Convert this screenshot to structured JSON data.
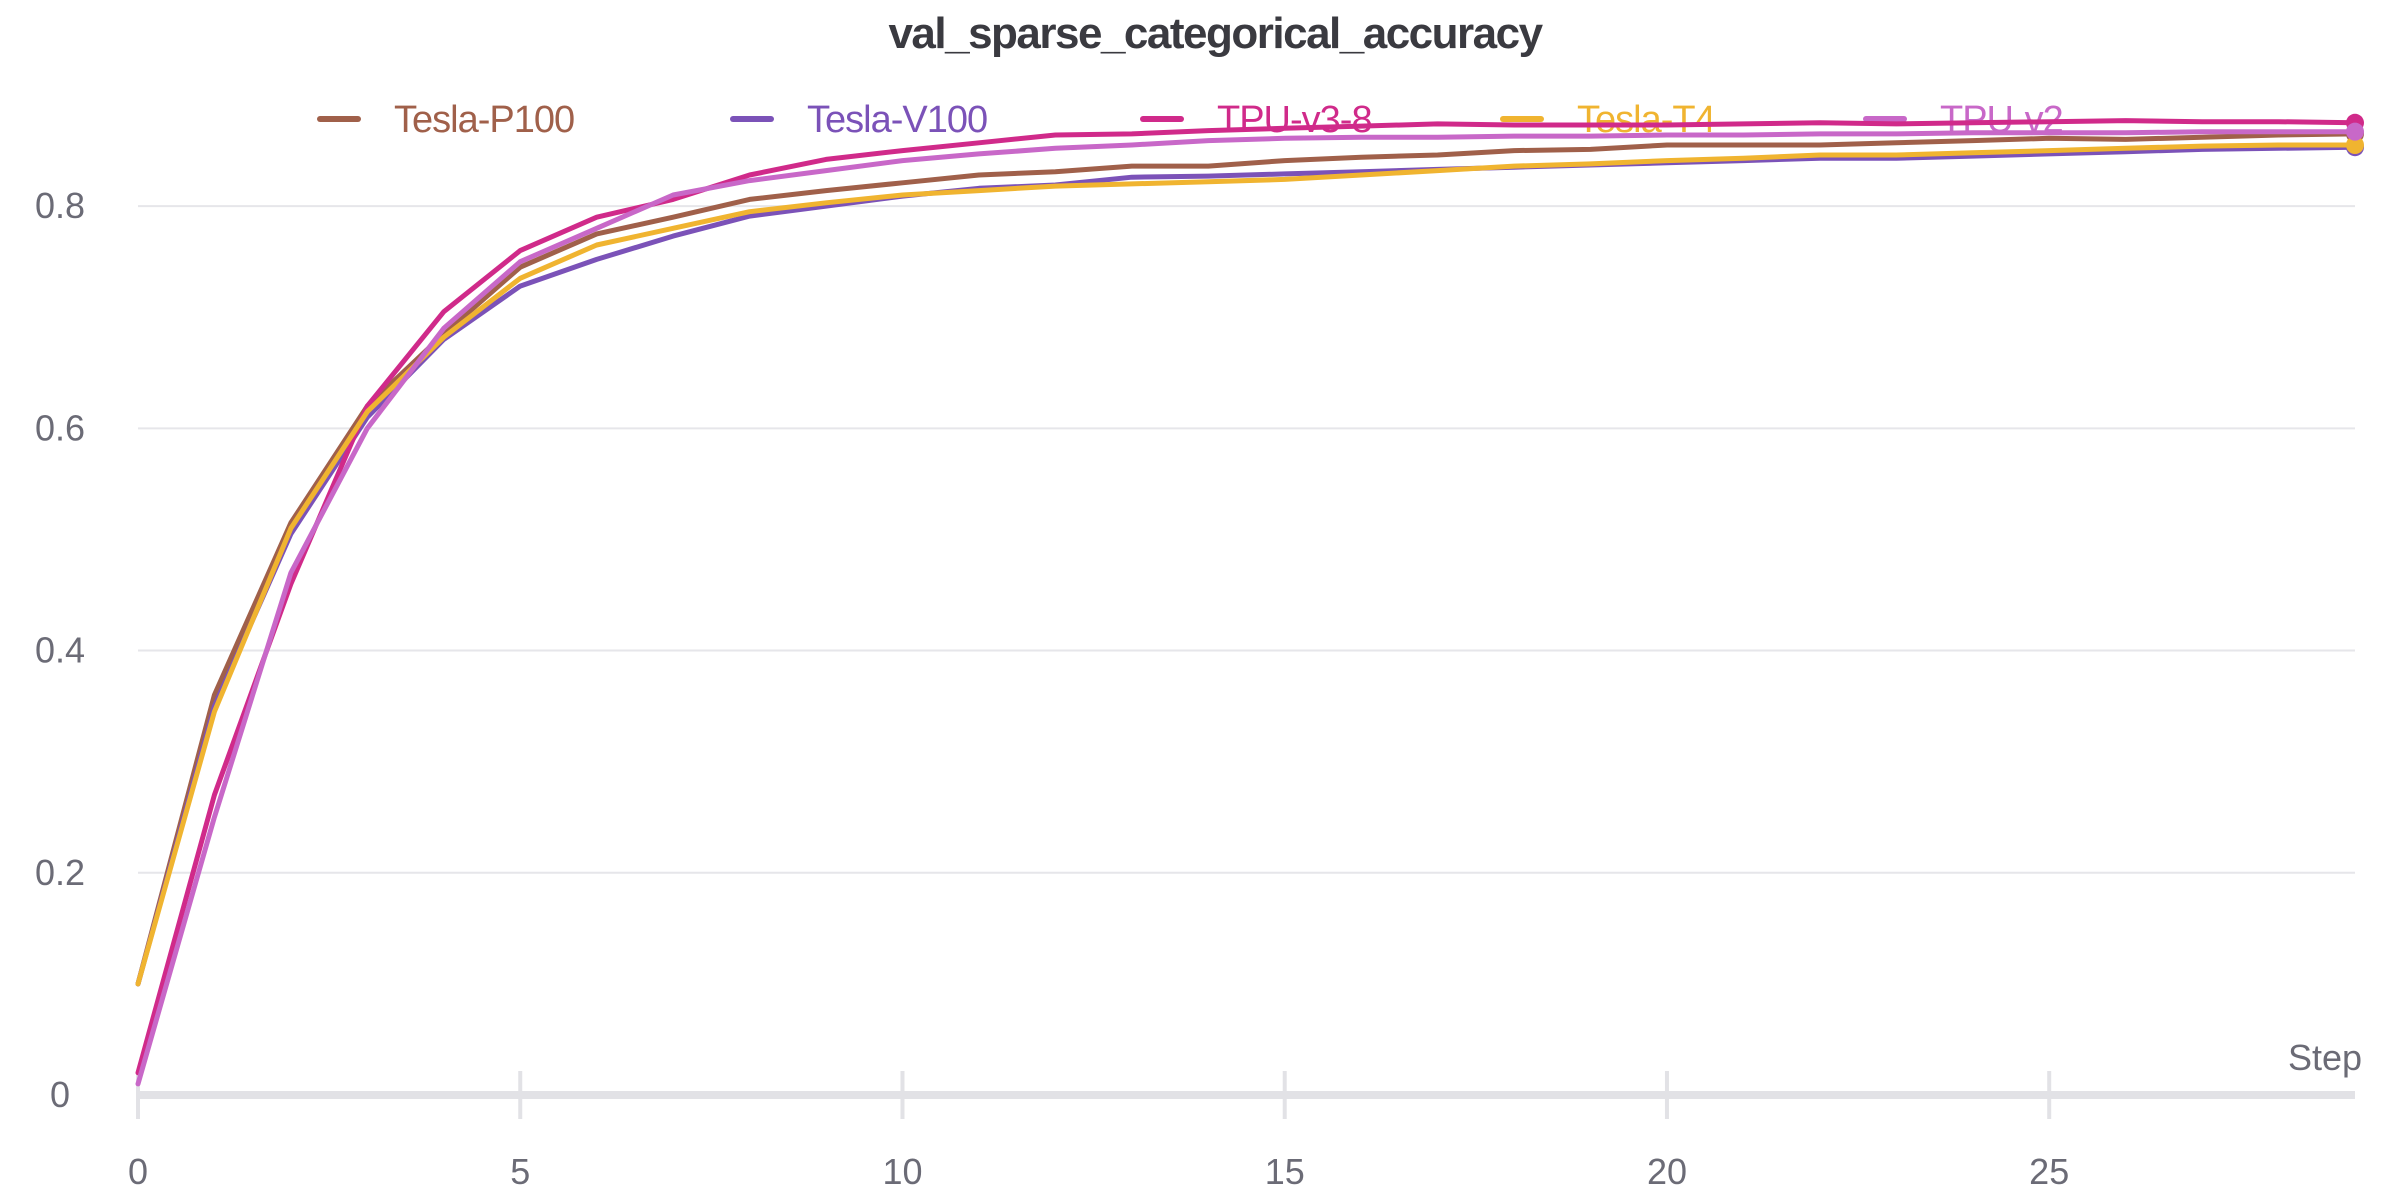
{
  "chart_data": {
    "type": "line",
    "title": "val_sparse_categorical_accuracy",
    "xlabel": "Step",
    "ylabel": "",
    "xlim": [
      0,
      29
    ],
    "ylim": [
      0,
      0.9
    ],
    "xticks": [
      0,
      5,
      10,
      15,
      20,
      25
    ],
    "yticks": [
      0,
      0.2,
      0.4,
      0.6,
      0.8
    ],
    "xtick_labels": [
      "0",
      "5",
      "10",
      "15",
      "20",
      "25"
    ],
    "ytick_labels": [
      "0",
      "0.2",
      "0.4",
      "0.6",
      "0.8"
    ],
    "grid": true,
    "legend_position": "top",
    "x": [
      0,
      1,
      2,
      3,
      4,
      5,
      6,
      7,
      8,
      9,
      10,
      11,
      12,
      13,
      14,
      15,
      16,
      17,
      18,
      19,
      20,
      21,
      22,
      23,
      24,
      25,
      26,
      27,
      28,
      29
    ],
    "series": [
      {
        "name": "Tesla-P100",
        "color": "#a0604a",
        "values": [
          0.1,
          0.36,
          0.515,
          0.62,
          0.685,
          0.745,
          0.775,
          0.79,
          0.806,
          0.814,
          0.821,
          0.828,
          0.831,
          0.836,
          0.836,
          0.841,
          0.844,
          0.846,
          0.85,
          0.851,
          0.855,
          0.855,
          0.855,
          0.857,
          0.859,
          0.861,
          0.86,
          0.862,
          0.864,
          0.865
        ]
      },
      {
        "name": "Tesla-V100",
        "color": "#7b52b8",
        "values": [
          0.1,
          0.35,
          0.505,
          0.61,
          0.68,
          0.728,
          0.752,
          0.773,
          0.791,
          0.8,
          0.809,
          0.816,
          0.819,
          0.826,
          0.827,
          0.829,
          0.831,
          0.833,
          0.835,
          0.837,
          0.839,
          0.841,
          0.843,
          0.843,
          0.845,
          0.847,
          0.849,
          0.851,
          0.852,
          0.853
        ]
      },
      {
        "name": "TPU-v3-8",
        "color": "#d02a8a",
        "values": [
          0.02,
          0.27,
          0.46,
          0.62,
          0.705,
          0.76,
          0.79,
          0.806,
          0.828,
          0.842,
          0.85,
          0.857,
          0.864,
          0.865,
          0.868,
          0.87,
          0.872,
          0.874,
          0.873,
          0.873,
          0.873,
          0.874,
          0.875,
          0.874,
          0.875,
          0.876,
          0.877,
          0.876,
          0.876,
          0.875
        ]
      },
      {
        "name": "Tesla-T4",
        "color": "#f0b430",
        "values": [
          0.1,
          0.345,
          0.51,
          0.615,
          0.682,
          0.735,
          0.765,
          0.78,
          0.795,
          0.803,
          0.81,
          0.814,
          0.818,
          0.82,
          0.822,
          0.824,
          0.828,
          0.832,
          0.836,
          0.838,
          0.841,
          0.843,
          0.846,
          0.846,
          0.848,
          0.85,
          0.852,
          0.854,
          0.855,
          0.855
        ]
      },
      {
        "name": "TPU-v2",
        "color": "#c868c8",
        "values": [
          0.01,
          0.25,
          0.47,
          0.6,
          0.69,
          0.75,
          0.78,
          0.81,
          0.823,
          0.832,
          0.841,
          0.847,
          0.852,
          0.855,
          0.859,
          0.861,
          0.862,
          0.862,
          0.863,
          0.863,
          0.864,
          0.864,
          0.865,
          0.865,
          0.866,
          0.866,
          0.866,
          0.867,
          0.867,
          0.867
        ]
      }
    ]
  }
}
